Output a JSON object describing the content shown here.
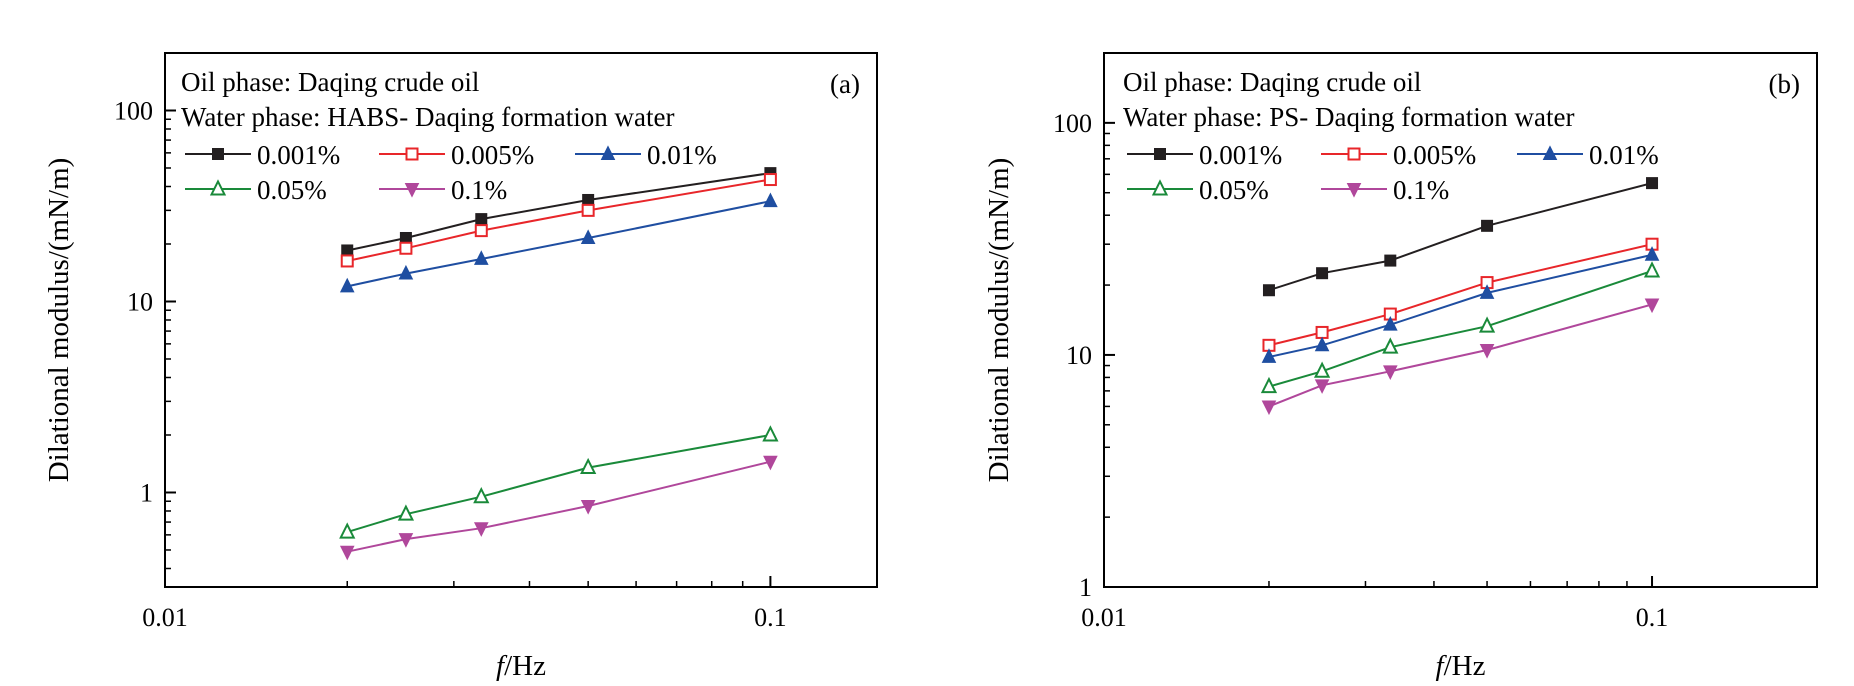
{
  "chart_data": [
    {
      "type": "line",
      "panel_label": "(a)",
      "xlabel_italic": "f",
      "xlabel_rest": "/Hz",
      "ylabel": "Dilational modulus/(mN/m)",
      "xscale": "log",
      "yscale": "log",
      "xlim": [
        0.01,
        0.15
      ],
      "ylim": [
        0.32,
        200
      ],
      "xticks": [
        {
          "value": 0.01,
          "label": "0.01"
        },
        {
          "value": 0.1,
          "label": "0.1"
        }
      ],
      "yticks": [
        {
          "value": 1,
          "label": "1"
        },
        {
          "value": 10,
          "label": "10"
        },
        {
          "value": 100,
          "label": "100"
        }
      ],
      "info_lines": [
        "Oil phase: Daqing crude oil",
        "Water phase: HABS- Daqing formation water"
      ],
      "legend_rows": [
        [
          0,
          1,
          2
        ],
        [
          3,
          4
        ]
      ],
      "x": [
        0.02,
        0.025,
        0.0333,
        0.05,
        0.1
      ],
      "series": [
        {
          "name": "0.001%",
          "color": "#231f20",
          "marker": "square-filled",
          "values": [
            18.5,
            21.5,
            27,
            34,
            47
          ]
        },
        {
          "name": "0.005%",
          "color": "#e8262a",
          "marker": "square-open",
          "values": [
            16.3,
            19,
            23.5,
            30,
            43.5
          ]
        },
        {
          "name": "0.01%",
          "color": "#1f4ea1",
          "marker": "triangle-up-filled",
          "values": [
            12,
            14,
            16.7,
            21.5,
            33.5
          ]
        },
        {
          "name": "0.05%",
          "color": "#1a8a3a",
          "marker": "triangle-up-open",
          "values": [
            0.62,
            0.77,
            0.95,
            1.35,
            2
          ]
        },
        {
          "name": "0.1%",
          "color": "#b0479b",
          "marker": "triangle-down-filled",
          "values": [
            0.49,
            0.57,
            0.65,
            0.85,
            1.45
          ]
        }
      ]
    },
    {
      "type": "line",
      "panel_label": "(b)",
      "xlabel_italic": "f",
      "xlabel_rest": "/Hz",
      "ylabel": "Dilational modulus/(mN/m)",
      "xscale": "log",
      "yscale": "log",
      "xlim": [
        0.01,
        0.2
      ],
      "ylim": [
        1,
        200
      ],
      "xticks": [
        {
          "value": 0.01,
          "label": "0.01"
        },
        {
          "value": 0.1,
          "label": "0.1"
        }
      ],
      "yticks": [
        {
          "value": 1,
          "label": "1"
        },
        {
          "value": 10,
          "label": "10"
        },
        {
          "value": 100,
          "label": "100"
        }
      ],
      "info_lines": [
        "Oil phase: Daqing crude oil",
        "Water phase: PS- Daqing formation water"
      ],
      "legend_rows": [
        [
          0,
          1,
          2
        ],
        [
          3,
          4
        ]
      ],
      "x": [
        0.02,
        0.025,
        0.0333,
        0.05,
        0.1
      ],
      "series": [
        {
          "name": "0.001%",
          "color": "#231f20",
          "marker": "square-filled",
          "values": [
            19,
            22.5,
            25.5,
            36,
            55
          ]
        },
        {
          "name": "0.005%",
          "color": "#e8262a",
          "marker": "square-open",
          "values": [
            11,
            12.5,
            15,
            20.5,
            30
          ]
        },
        {
          "name": "0.01%",
          "color": "#1f4ea1",
          "marker": "triangle-up-filled",
          "values": [
            9.8,
            11,
            13.5,
            18.5,
            27
          ]
        },
        {
          "name": "0.05%",
          "color": "#1a8a3a",
          "marker": "triangle-up-open",
          "values": [
            7.3,
            8.5,
            10.8,
            13.3,
            23
          ]
        },
        {
          "name": "0.1%",
          "color": "#b0479b",
          "marker": "triangle-down-filled",
          "values": [
            6,
            7.4,
            8.5,
            10.5,
            16.5
          ]
        }
      ]
    }
  ]
}
